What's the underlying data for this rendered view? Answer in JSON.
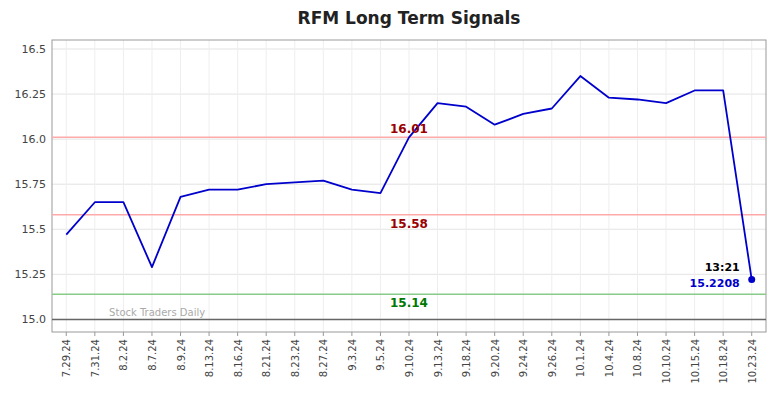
{
  "chart_data": {
    "type": "line",
    "title": "RFM Long Term Signals",
    "categories": [
      "7.29.24",
      "7.31.24",
      "8.2.24",
      "8.7.24",
      "8.9.24",
      "8.13.24",
      "8.16.24",
      "8.21.24",
      "8.23.24",
      "8.27.24",
      "9.3.24",
      "9.5.24",
      "9.10.24",
      "9.13.24",
      "9.18.24",
      "9.20.24",
      "9.24.24",
      "9.26.24",
      "10.1.24",
      "10.4.24",
      "10.8.24",
      "10.10.24",
      "10.15.24",
      "10.18.24",
      "10.23.24"
    ],
    "values": [
      15.47,
      15.65,
      15.65,
      15.29,
      15.68,
      15.72,
      15.72,
      15.75,
      15.76,
      15.77,
      15.72,
      15.7,
      16.01,
      16.2,
      16.18,
      16.08,
      16.14,
      16.17,
      16.35,
      16.23,
      16.22,
      16.2,
      16.27,
      16.27,
      15.2208
    ],
    "color": "#0000cc",
    "reference_lines": [
      {
        "value": 16.01,
        "label": "16.01",
        "color": "#ffaaaa",
        "label_color": "#990000"
      },
      {
        "value": 15.58,
        "label": "15.58",
        "color": "#ffaaaa",
        "label_color": "#990000"
      },
      {
        "value": 15.14,
        "label": "15.14",
        "color": "#88cc88",
        "label_color": "#007700"
      },
      {
        "value": 15.0,
        "color": "#666666"
      }
    ],
    "annotations": [
      {
        "text": "13:21",
        "color": "#000000"
      },
      {
        "text": "15.2208",
        "color": "#0000cc"
      }
    ],
    "watermark": "Stock Traders Daily",
    "ylim": [
      14.93,
      16.55
    ],
    "yticks": [
      {
        "value": 15.0,
        "label": "15.0"
      },
      15.25,
      15.5,
      15.75,
      {
        "value": 16.0,
        "label": "16.0"
      },
      16.25,
      16.5
    ],
    "grid": true
  }
}
